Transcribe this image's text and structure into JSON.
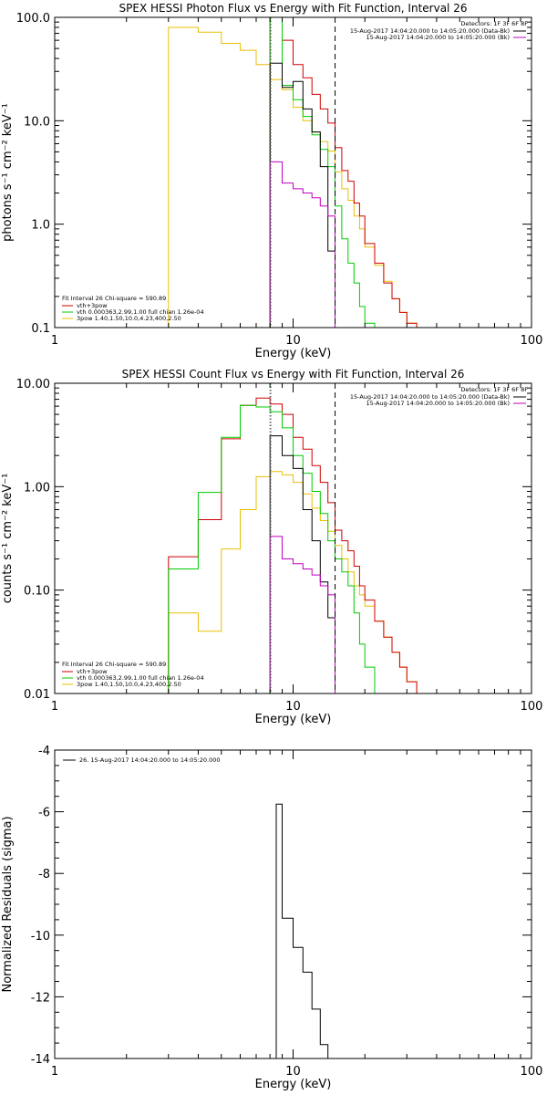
{
  "charts": [
    {
      "type": "line",
      "title": "SPEX HESSI Photon Flux vs Energy with Fit Function, Interval 26",
      "xlabel": "Energy (keV)",
      "ylabel": "photons s⁻¹ cm⁻² keV⁻¹",
      "xscale": "log",
      "yscale": "log",
      "xlim": [
        1,
        100
      ],
      "ylim": [
        0.1,
        100
      ],
      "xticks": [
        {
          "v": 1,
          "label": "1"
        },
        {
          "v": 10,
          "label": "10"
        },
        {
          "v": 100,
          "label": "100"
        }
      ],
      "yticks": [
        {
          "v": 0.1,
          "label": "0.1"
        },
        {
          "v": 1,
          "label": "1.0"
        },
        {
          "v": 10,
          "label": "10.0"
        },
        {
          "v": 100,
          "label": "100.0"
        }
      ],
      "vlines": [
        {
          "x": 8,
          "color": "#c000c0",
          "style": "dotted"
        },
        {
          "x": 8,
          "color": "#00c000",
          "style": "dotted"
        },
        {
          "x": 15,
          "color": "#000000",
          "style": "dashed"
        }
      ],
      "info": {
        "detectors": "Detectors: 1F 3F 6F 8F",
        "lines": [
          {
            "text": "15-Aug-2017 14:04:20.000 to 14:05:20.000 (Data-Bk)",
            "color": "#000000"
          },
          {
            "text": "15-Aug-2017 14:04:20.000 to 14:05:20.000 (Bk)",
            "color": "#c000c0"
          }
        ]
      },
      "fit_legend": {
        "header": "Fit Interval 26   Chi-square = 590.89",
        "items": [
          {
            "text": "vth+3pow",
            "color": "#d00000"
          },
          {
            "text": "vth 0.000363,2.99,1.00  full chian 1.26e-04",
            "color": "#00cc00"
          },
          {
            "text": "3pow 1.40,1.50,10.0,4.23,400,2.50",
            "color": "#e8c000"
          }
        ]
      },
      "series": [
        {
          "color": "#e8c000",
          "x": [
            3,
            4,
            5,
            6,
            7,
            8,
            9,
            10,
            11,
            12,
            13,
            14,
            15,
            16,
            17,
            18,
            19,
            20,
            22,
            24,
            26,
            28,
            30,
            33,
            36
          ],
          "y": [
            80,
            72,
            56,
            48,
            35,
            25,
            20,
            13.5,
            10,
            7.8,
            6.3,
            5.1,
            3.2,
            2.2,
            1.7,
            1.2,
            0.9,
            0.6,
            0.4,
            0.28,
            0.19,
            0.14,
            0.11,
            0.1,
            0.1
          ]
        },
        {
          "color": "#d00000",
          "x": [
            8,
            9,
            10,
            11,
            12,
            13,
            14,
            15,
            16,
            17,
            18,
            19,
            20,
            22,
            24,
            26,
            28,
            30,
            33,
            36
          ],
          "y": [
            100,
            60,
            35,
            26,
            18,
            13,
            9.5,
            5.5,
            3.3,
            2.6,
            1.6,
            1.2,
            0.65,
            0.42,
            0.27,
            0.19,
            0.14,
            0.11,
            0.1,
            0.1
          ]
        },
        {
          "color": "#00cc00",
          "x": [
            8,
            9,
            10,
            11,
            12,
            13,
            14,
            15,
            16,
            17,
            18,
            19,
            20,
            22,
            24
          ],
          "y": [
            100,
            22,
            16,
            11,
            7.3,
            5.3,
            3.6,
            1.5,
            0.72,
            0.42,
            0.27,
            0.16,
            0.11,
            0.1,
            0.1
          ]
        },
        {
          "color": "#000000",
          "x": [
            8,
            9,
            10,
            11,
            12,
            13,
            14,
            15
          ],
          "y": [
            36,
            21,
            24,
            13,
            7.8,
            3.6,
            0.55,
            0.1
          ]
        },
        {
          "color": "#c000c0",
          "x": [
            8,
            9,
            10,
            11,
            12,
            13,
            14,
            15
          ],
          "y": [
            4,
            2.5,
            2.2,
            2.0,
            1.8,
            1.5,
            1.2,
            0.1
          ]
        }
      ]
    },
    {
      "type": "line",
      "title": "SPEX HESSI Count Flux vs Energy with Fit Function, Interval 26",
      "xlabel": "Energy (keV)",
      "ylabel": "counts s⁻¹ cm⁻² keV⁻¹",
      "xscale": "log",
      "yscale": "log",
      "xlim": [
        1,
        100
      ],
      "ylim": [
        0.01,
        10
      ],
      "xticks": [
        {
          "v": 1,
          "label": "1"
        },
        {
          "v": 10,
          "label": "10"
        },
        {
          "v": 100,
          "label": "100"
        }
      ],
      "yticks": [
        {
          "v": 0.01,
          "label": "0.01"
        },
        {
          "v": 0.1,
          "label": "0.10"
        },
        {
          "v": 1,
          "label": "1.00"
        },
        {
          "v": 10,
          "label": "10.00"
        }
      ],
      "vlines": [
        {
          "x": 8,
          "color": "#c000c0",
          "style": "dotted"
        },
        {
          "x": 8,
          "color": "#00c000",
          "style": "dotted"
        },
        {
          "x": 15,
          "color": "#000000",
          "style": "dashed"
        }
      ],
      "info": {
        "detectors": "Detectors: 1F 3F 6F 8F",
        "lines": [
          {
            "text": "15-Aug-2017 14:04:20.000 to 14:05:20.000 (Data-Bk)",
            "color": "#000000"
          },
          {
            "text": "15-Aug-2017 14:04:20.000 to 14:05:20.000 (Bk)",
            "color": "#c000c0"
          }
        ]
      },
      "fit_legend": {
        "header": "Fit Interval 26   Chi-square = 590.89",
        "items": [
          {
            "text": "vth+3pow",
            "color": "#d00000"
          },
          {
            "text": "vth 0.000363,2.99,1.00  full chian 1.26e-04",
            "color": "#00cc00"
          },
          {
            "text": "3pow 1.40,1.50,10.0,4.23,400,2.50",
            "color": "#e8c000"
          }
        ]
      },
      "series": [
        {
          "color": "#e8c000",
          "x": [
            3,
            4,
            5,
            6,
            7,
            8,
            9,
            10,
            11,
            12,
            13,
            14,
            15,
            16,
            17,
            18,
            19,
            20,
            22,
            24,
            26,
            28,
            30,
            33,
            36
          ],
          "y": [
            0.06,
            0.04,
            0.25,
            0.6,
            1.25,
            1.4,
            1.3,
            1.1,
            0.85,
            0.62,
            0.47,
            0.37,
            0.27,
            0.2,
            0.15,
            0.11,
            0.09,
            0.07,
            0.05,
            0.035,
            0.025,
            0.018,
            0.013,
            0.01,
            0.01
          ]
        },
        {
          "color": "#d00000",
          "x": [
            3,
            4,
            5,
            6,
            7,
            8,
            9,
            10,
            11,
            12,
            13,
            14,
            15,
            16,
            17,
            18,
            19,
            20,
            22,
            24,
            26,
            28,
            30,
            33,
            36
          ],
          "y": [
            0.21,
            0.48,
            2.9,
            6.1,
            7.2,
            6.3,
            5.0,
            3.0,
            2.3,
            1.6,
            1.1,
            0.7,
            0.38,
            0.3,
            0.24,
            0.17,
            0.11,
            0.08,
            0.05,
            0.035,
            0.025,
            0.018,
            0.013,
            0.01,
            0.01
          ]
        },
        {
          "color": "#00cc00",
          "x": [
            3,
            4,
            5,
            6,
            7,
            8,
            9,
            10,
            11,
            12,
            13,
            14,
            15,
            16,
            17,
            18,
            19,
            20,
            22,
            24
          ],
          "y": [
            0.16,
            0.88,
            3.0,
            6.1,
            5.9,
            5.3,
            3.7,
            2.0,
            1.35,
            0.9,
            0.55,
            0.3,
            0.2,
            0.15,
            0.11,
            0.06,
            0.03,
            0.018,
            0.01,
            0.01
          ]
        },
        {
          "color": "#000000",
          "x": [
            8,
            9,
            10,
            11,
            12,
            13,
            14,
            15
          ],
          "y": [
            3.1,
            2.0,
            1.5,
            0.6,
            0.3,
            0.12,
            0.054,
            0.01
          ]
        },
        {
          "color": "#c000c0",
          "x": [
            8,
            9,
            10,
            11,
            12,
            13,
            14,
            15
          ],
          "y": [
            0.33,
            0.2,
            0.18,
            0.16,
            0.14,
            0.11,
            0.09,
            0.01
          ]
        }
      ]
    },
    {
      "type": "line",
      "title": "",
      "xlabel": "Energy (keV)",
      "ylabel": "Normalized Residuals (sigma)",
      "xscale": "log",
      "yscale": "linear",
      "xlim": [
        1,
        100
      ],
      "ylim": [
        -14,
        -4
      ],
      "xticks": [
        {
          "v": 1,
          "label": "1"
        },
        {
          "v": 10,
          "label": "10"
        },
        {
          "v": 100,
          "label": "100"
        }
      ],
      "yticks": [
        {
          "v": -14,
          "label": "-14"
        },
        {
          "v": -12,
          "label": "-12"
        },
        {
          "v": -10,
          "label": "-10"
        },
        {
          "v": -8,
          "label": "-8"
        },
        {
          "v": -6,
          "label": "-6"
        },
        {
          "v": -4,
          "label": "-4"
        }
      ],
      "legend": {
        "text": "26. 15-Aug-2017 14:04:20.000 to 14:05:20.000",
        "color": "#000000"
      },
      "series": [
        {
          "color": "#000000",
          "x": [
            8,
            8.5,
            9,
            10,
            11,
            12,
            13,
            14,
            15
          ],
          "y": [
            -14,
            -5.75,
            -9.45,
            -10.4,
            -11.2,
            -12.4,
            -13.55,
            -14,
            -14
          ]
        }
      ]
    }
  ]
}
